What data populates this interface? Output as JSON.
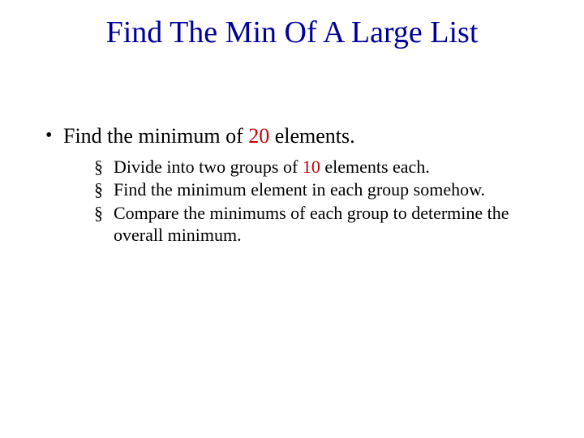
{
  "colors": {
    "title": "#000099",
    "highlight": "#cc0000",
    "text": "#000000",
    "background": "#ffffff"
  },
  "title": "Find The Min Of A Large List",
  "main": {
    "pre": "Find the  minimum of ",
    "highlight": "20",
    "post": " elements."
  },
  "subs": [
    {
      "pre": "Divide into two groups of ",
      "highlight": "10",
      "post": " elements each."
    },
    {
      "pre": "Find the minimum element in each group somehow.",
      "highlight": "",
      "post": ""
    },
    {
      "pre": "Compare the minimums of each group to determine the overall minimum.",
      "highlight": "",
      "post": ""
    }
  ],
  "typography": {
    "title_fontsize": 38,
    "main_fontsize": 26,
    "sub_fontsize": 22,
    "font_family": "Times New Roman"
  }
}
